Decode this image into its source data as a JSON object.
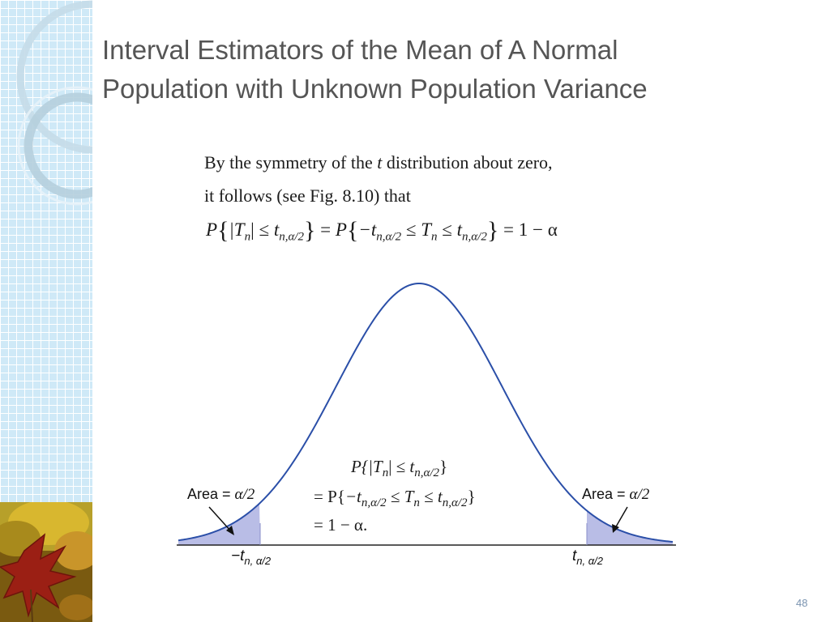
{
  "slide": {
    "title_line_1": "Interval Estimators of the Mean of A Normal",
    "title_line_2": "Population with Unknown Population Variance",
    "page_number": "48"
  },
  "figure": {
    "intro_1_a": "By the symmetry of the ",
    "intro_1_t": "t",
    "intro_1_b": " distribution about zero,",
    "intro_2": "it follows (see Fig. 8.10) that",
    "eq": {
      "P": "P",
      "abs_T": "|T",
      "n": "n",
      "bar": "|",
      "le": " ≤ ",
      "t": "t",
      "sub_t": "n,α/2",
      "equals": " = ",
      "minus_t": "−t",
      "T": "T",
      "one_minus_alpha": "1 − α"
    },
    "curve_eq_1": {
      "open": "P{|",
      "T": "T",
      "n": "n",
      "mid": "| ≤ ",
      "t": "t",
      "sub": "n,α/2",
      "close": "}"
    },
    "curve_eq_2": {
      "open": "= P{",
      "mt": "−t",
      "sub1": "n,α/2",
      "le1": " ≤ ",
      "T": "T",
      "n": "n",
      "le2": " ≤ ",
      "t": "t",
      "sub2": "n,α/2",
      "close": "}"
    },
    "curve_eq_3": "= 1 − α.",
    "area_left": {
      "word": "Area",
      "eq": " = ",
      "alpha": "α/2"
    },
    "area_right": {
      "word": "Area",
      "eq": " = ",
      "alpha": "α/2"
    },
    "tick_left": {
      "t": "−t",
      "sub": "n, α/2"
    },
    "tick_right": {
      "t": "t",
      "sub": "n, α/2"
    }
  },
  "colors": {
    "curve": "#2b4fa8",
    "tail_fill": "#b9bde6",
    "title": "#555555",
    "strip": "#cfe9f7"
  }
}
